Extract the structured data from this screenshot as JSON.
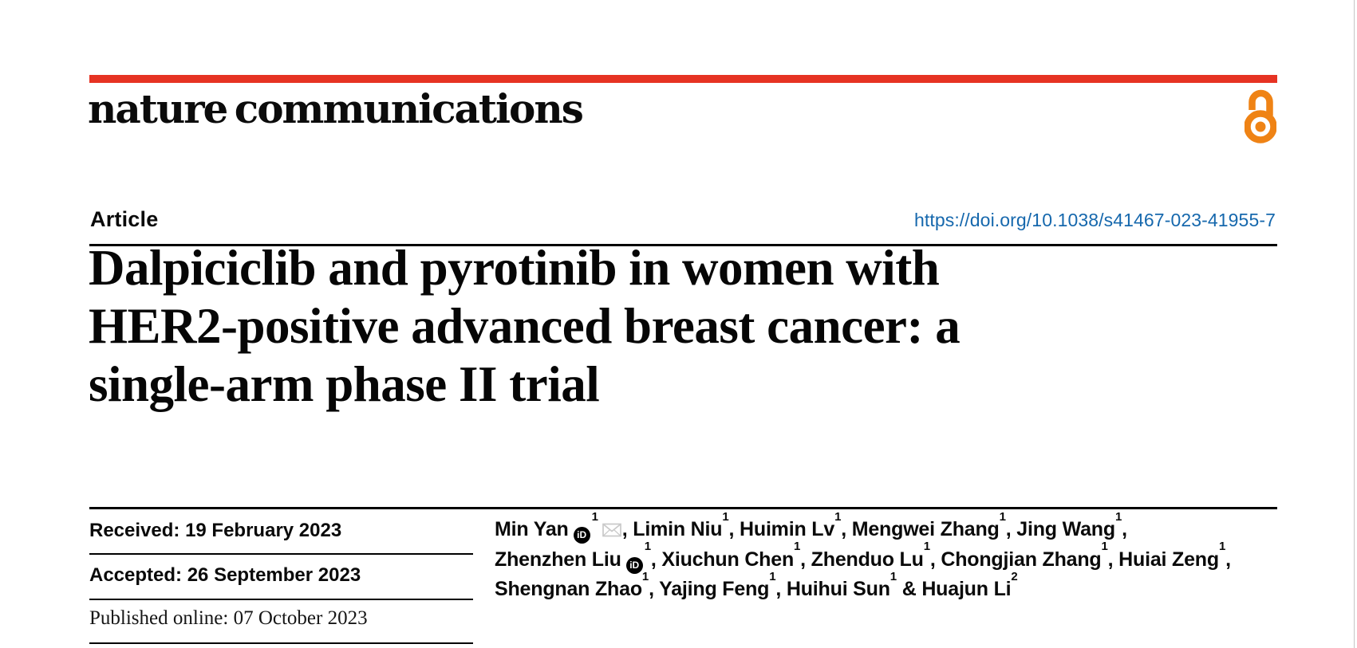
{
  "journal": {
    "wordmark": "nature communications"
  },
  "colors": {
    "brand_red": "#e63323",
    "open_access_orange": "#ef8315",
    "doi_link_blue": "#1668ad"
  },
  "article": {
    "kicker": "Article",
    "doi": "https://doi.org/10.1038/s41467-023-41955-7",
    "title_lines": [
      "Dalpiciclib and pyrotinib in women with",
      "HER2-positive advanced breast cancer: a",
      "single-arm phase II trial"
    ]
  },
  "dates": [
    {
      "label": "Received:",
      "value": "19 February 2023"
    },
    {
      "label": "Accepted:",
      "value": "26 September 2023"
    },
    {
      "label": "Published online:",
      "value": "07 October 2023"
    }
  ],
  "authors": {
    "lines": [
      [
        {
          "name": "Min Yan",
          "orcid": true,
          "sup": "1",
          "envelope": true,
          "after": ", "
        },
        {
          "name": "Limin Niu",
          "sup": "1",
          "after": ", "
        },
        {
          "name": "Huimin Lv",
          "sup": "1",
          "after": ", "
        },
        {
          "name": "Mengwei Zhang",
          "sup": "1",
          "after": ", "
        },
        {
          "name": "Jing Wang",
          "sup": "1",
          "after": ","
        }
      ],
      [
        {
          "name": "Zhenzhen Liu",
          "orcid": true,
          "sup": "1",
          "after": ", "
        },
        {
          "name": "Xiuchun Chen",
          "sup": "1",
          "after": ", "
        },
        {
          "name": "Zhenduo Lu",
          "sup": "1",
          "after": ", "
        },
        {
          "name": "Chongjian Zhang",
          "sup": "1",
          "after": ", "
        },
        {
          "name": "Huiai Zeng",
          "sup": "1",
          "after": ","
        }
      ],
      [
        {
          "name": "Shengnan Zhao",
          "sup": "1",
          "after": ", "
        },
        {
          "name": "Yajing Feng",
          "sup": "1",
          "after": ", "
        },
        {
          "name": "Huihui Sun",
          "sup": "1",
          "after": " & "
        },
        {
          "name": "Huajun Li",
          "sup": "2",
          "after": ""
        }
      ]
    ]
  },
  "icons": {
    "open_access": "open-access-lock-icon",
    "orcid": "orcid-id-icon",
    "orcid_glyph": "iD",
    "envelope": "email-envelope-icon"
  }
}
